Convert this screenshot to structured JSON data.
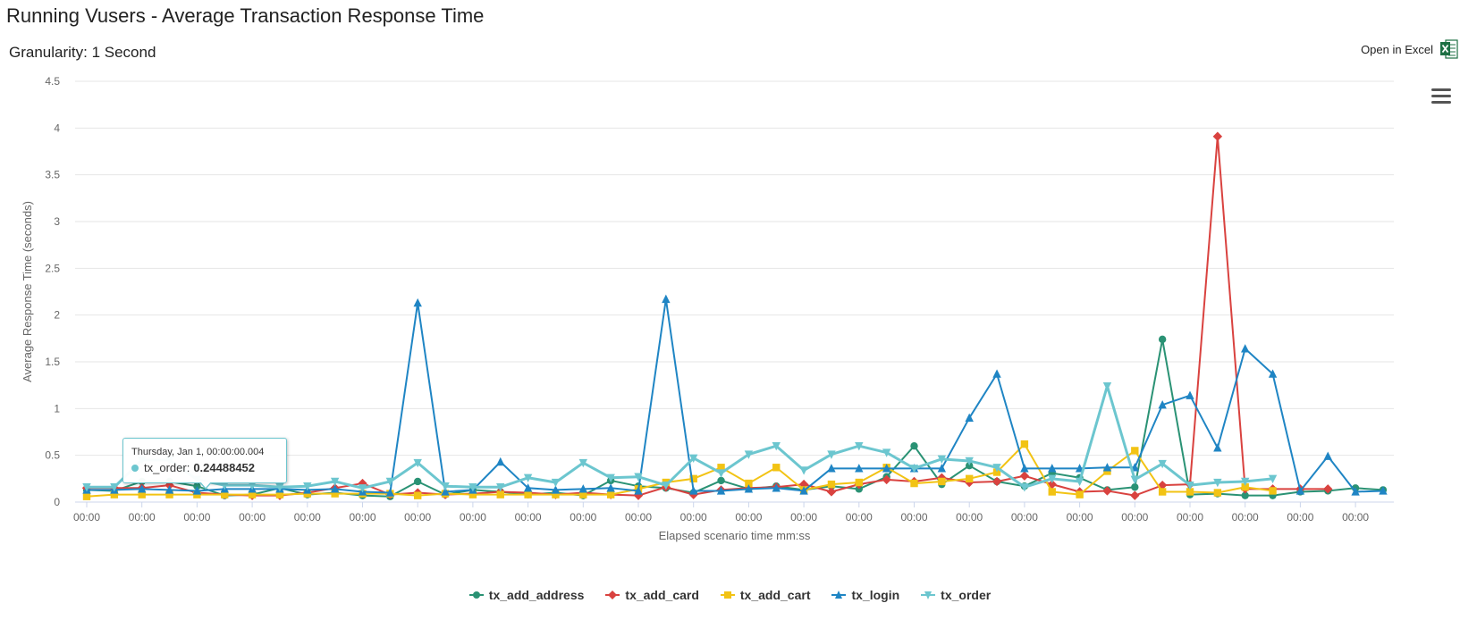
{
  "title": "Running Vusers - Average Transaction Response Time",
  "granularity": "Granularity: 1 Second",
  "excel": {
    "label": "Open in Excel",
    "icon": "excel-icon"
  },
  "menu": {
    "icon": "hamburger-menu-icon"
  },
  "tooltip": {
    "header": "Thursday, Jan 1, 00:00:00.004",
    "series": "tx_order",
    "separator": ":",
    "value": "0.24488452",
    "color": "#6cc6cf"
  },
  "chart_data": {
    "type": "line",
    "xlabel": "Elapsed scenario time mm:ss",
    "ylabel": "Average Response Time (seconds)",
    "ylim": [
      0,
      4.5
    ],
    "yticks": [
      0,
      0.5,
      1,
      1.5,
      2,
      2.5,
      3,
      3.5,
      4,
      4.5
    ],
    "ytick_labels": [
      "0",
      "0.5",
      "1",
      "1.5",
      "2",
      "2.5",
      "3",
      "3.5",
      "4",
      "4.5"
    ],
    "xtick_labels": [
      "00:00",
      "00:00",
      "00:00",
      "00:00",
      "00:00",
      "00:00",
      "00:00",
      "00:00",
      "00:00",
      "00:00",
      "00:00",
      "00:00",
      "00:00",
      "00:00",
      "00:00",
      "00:00",
      "00:00",
      "00:00",
      "00:00",
      "00:00",
      "00:00",
      "00:00",
      "00:00",
      "00:00"
    ],
    "grid": true,
    "legend_position": "bottom-center",
    "series": [
      {
        "name": "tx_add_address",
        "color": "#2a9274",
        "marker": "circle",
        "values": [
          0.13,
          0.12,
          0.22,
          0.22,
          0.17,
          0.07,
          0.08,
          0.15,
          0.08,
          0.1,
          0.07,
          0.06,
          0.22,
          0.08,
          0.13,
          0.11,
          0.08,
          0.1,
          0.07,
          0.23,
          0.17,
          0.15,
          0.1,
          0.23,
          0.14,
          0.17,
          0.13,
          0.17,
          0.14,
          0.27,
          0.6,
          0.19,
          0.39,
          0.22,
          0.17,
          0.31,
          0.26,
          0.13,
          0.16,
          1.74,
          0.08,
          0.09,
          0.07,
          0.07,
          0.11,
          0.12,
          0.15,
          0.13
        ]
      },
      {
        "name": "tx_add_card",
        "color": "#d9423f",
        "marker": "diamond",
        "values": [
          0.15,
          0.15,
          0.15,
          0.18,
          0.1,
          0.08,
          0.07,
          0.07,
          0.1,
          0.15,
          0.2,
          0.08,
          0.1,
          0.08,
          0.09,
          0.11,
          0.1,
          0.08,
          0.1,
          0.08,
          0.07,
          0.16,
          0.08,
          0.13,
          0.15,
          0.16,
          0.19,
          0.11,
          0.19,
          0.24,
          0.22,
          0.26,
          0.21,
          0.22,
          0.28,
          0.19,
          0.11,
          0.12,
          0.07,
          0.18,
          0.19,
          3.91,
          0.14,
          0.14,
          0.14,
          0.14
        ]
      },
      {
        "name": "tx_add_cart",
        "color": "#f2c314",
        "marker": "square",
        "values": [
          0.06,
          0.08,
          0.08,
          0.08,
          0.08,
          0.08,
          0.08,
          0.08,
          0.09,
          0.09,
          0.09,
          0.09,
          0.07,
          0.09,
          0.08,
          0.08,
          0.08,
          0.08,
          0.08,
          0.08,
          0.14,
          0.21,
          0.25,
          0.37,
          0.2,
          0.37,
          0.13,
          0.19,
          0.21,
          0.37,
          0.2,
          0.22,
          0.25,
          0.32,
          0.62,
          0.11,
          0.08,
          0.33,
          0.55,
          0.11,
          0.11,
          0.1,
          0.16,
          0.12
        ]
      },
      {
        "name": "tx_login",
        "color": "#1f85c4",
        "marker": "triangle-up",
        "values": [
          0.13,
          0.13,
          0.14,
          0.13,
          0.12,
          0.14,
          0.14,
          0.14,
          0.13,
          0.14,
          0.11,
          0.1,
          2.13,
          0.11,
          0.13,
          0.43,
          0.15,
          0.13,
          0.14,
          0.15,
          0.12,
          2.17,
          0.12,
          0.12,
          0.14,
          0.15,
          0.12,
          0.36,
          0.36,
          0.36,
          0.36,
          0.36,
          0.9,
          1.37,
          0.36,
          0.36,
          0.36,
          0.37,
          0.37,
          1.04,
          1.14,
          0.58,
          1.64,
          1.37,
          0.12,
          0.49,
          0.11,
          0.12
        ]
      },
      {
        "name": "tx_order",
        "color": "#6cc6cf",
        "marker": "triangle-down",
        "values": [
          0.16,
          0.16,
          0.45,
          0.45,
          0.24,
          0.18,
          0.18,
          0.16,
          0.17,
          0.22,
          0.15,
          0.22,
          0.42,
          0.17,
          0.16,
          0.16,
          0.26,
          0.21,
          0.42,
          0.26,
          0.27,
          0.18,
          0.47,
          0.31,
          0.51,
          0.6,
          0.34,
          0.51,
          0.6,
          0.53,
          0.36,
          0.46,
          0.44,
          0.37,
          0.16,
          0.25,
          0.22,
          1.24,
          0.24,
          0.41,
          0.18,
          0.21,
          0.22,
          0.25
        ]
      }
    ]
  }
}
